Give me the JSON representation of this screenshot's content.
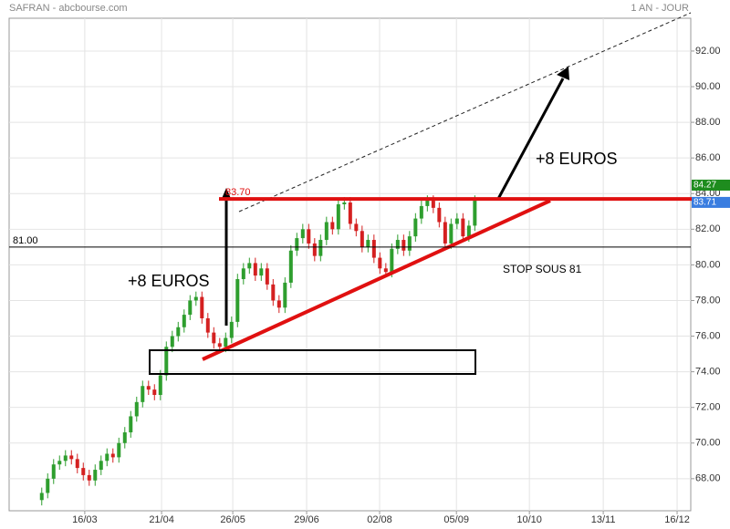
{
  "chart_data": {
    "type": "candlestick",
    "title": "SAFRAN - abcbourse.com",
    "subtitle": "1 AN - JOUR",
    "x": [
      11,
      13,
      15,
      17,
      19,
      21,
      23,
      25,
      27,
      29,
      31,
      33,
      35,
      37,
      39,
      41,
      43,
      45,
      47,
      49,
      51,
      53,
      55,
      57,
      59,
      61,
      63,
      65,
      67,
      69,
      71,
      73,
      75,
      77,
      79,
      81,
      83,
      85,
      87,
      89,
      91,
      93,
      95,
      97,
      99,
      101,
      103,
      105,
      107,
      109,
      111,
      113,
      115,
      117,
      119,
      121,
      123,
      125,
      127,
      129,
      131,
      133,
      135,
      137,
      139,
      141,
      143,
      145,
      147,
      149,
      151,
      153,
      155,
      157
    ],
    "open": [
      66.8,
      67.2,
      68.0,
      68.8,
      69.0,
      69.3,
      69.1,
      68.6,
      68.2,
      67.9,
      68.5,
      69.0,
      69.4,
      69.2,
      70.0,
      70.6,
      71.5,
      72.3,
      73.2,
      73.0,
      72.7,
      73.8,
      75.4,
      76.0,
      76.5,
      77.2,
      78.0,
      78.2,
      77.0,
      76.2,
      75.6,
      75.4,
      75.9,
      76.8,
      79.2,
      79.8,
      80.1,
      79.4,
      79.8,
      78.9,
      78.0,
      77.6,
      79.0,
      80.8,
      81.5,
      82.0,
      81.2,
      80.5,
      81.4,
      82.4,
      82.0,
      83.4,
      83.5,
      82.3,
      81.9,
      81.0,
      81.4,
      80.4,
      79.8,
      79.6,
      80.9,
      81.4,
      80.8,
      81.6,
      82.6,
      83.3,
      83.6,
      83.2,
      82.4,
      81.2,
      82.3,
      82.6,
      81.6,
      82.2
    ],
    "high": [
      67.5,
      68.3,
      69.1,
      69.3,
      69.6,
      69.6,
      69.4,
      68.9,
      68.5,
      68.8,
      69.3,
      69.7,
      69.7,
      70.3,
      70.9,
      71.8,
      72.6,
      73.5,
      73.5,
      73.3,
      74.1,
      75.7,
      76.3,
      76.8,
      77.5,
      78.3,
      78.5,
      78.5,
      77.3,
      76.5,
      75.9,
      76.2,
      77.1,
      79.5,
      80.1,
      80.4,
      80.4,
      80.1,
      80.1,
      79.2,
      78.3,
      79.3,
      81.1,
      81.8,
      82.3,
      82.3,
      81.5,
      81.7,
      82.7,
      82.7,
      83.7,
      83.8,
      83.8,
      82.6,
      82.2,
      81.7,
      81.7,
      80.7,
      80.1,
      81.2,
      81.7,
      81.7,
      81.9,
      82.9,
      83.6,
      83.9,
      83.9,
      83.5,
      82.7,
      82.6,
      82.9,
      82.9,
      82.5,
      83.9
    ],
    "low": [
      66.5,
      66.9,
      67.7,
      68.5,
      68.7,
      68.8,
      68.3,
      67.9,
      67.6,
      67.6,
      68.2,
      68.7,
      68.9,
      68.9,
      69.7,
      70.3,
      71.2,
      72.0,
      72.7,
      72.4,
      72.4,
      73.5,
      75.1,
      75.7,
      76.2,
      76.9,
      77.7,
      76.7,
      75.9,
      75.3,
      75.1,
      75.1,
      75.6,
      76.5,
      78.9,
      79.5,
      79.1,
      79.1,
      78.6,
      77.7,
      77.3,
      77.3,
      78.7,
      80.5,
      81.2,
      80.9,
      80.2,
      80.2,
      81.1,
      81.7,
      81.7,
      83.1,
      82.0,
      81.6,
      80.7,
      80.7,
      80.1,
      79.5,
      79.3,
      79.3,
      80.6,
      80.5,
      80.5,
      81.3,
      82.3,
      83.0,
      82.9,
      82.1,
      80.9,
      80.9,
      82.0,
      81.3,
      81.3,
      81.9
    ],
    "close": [
      67.2,
      68.0,
      68.8,
      69.0,
      69.3,
      69.1,
      68.6,
      68.2,
      67.9,
      68.5,
      69.0,
      69.4,
      69.2,
      70.0,
      70.6,
      71.5,
      72.3,
      73.2,
      73.0,
      72.7,
      73.8,
      75.4,
      76.0,
      76.5,
      77.2,
      78.0,
      78.2,
      77.0,
      76.2,
      75.6,
      75.4,
      75.9,
      76.8,
      79.2,
      79.8,
      80.1,
      79.4,
      79.8,
      78.9,
      78.0,
      77.6,
      79.0,
      80.8,
      81.5,
      82.0,
      81.2,
      80.5,
      81.4,
      82.4,
      82.0,
      83.4,
      83.5,
      82.3,
      81.9,
      81.0,
      81.4,
      80.4,
      79.8,
      79.6,
      80.9,
      81.4,
      80.8,
      81.6,
      82.6,
      83.3,
      83.6,
      83.2,
      82.4,
      81.2,
      82.3,
      82.6,
      81.6,
      82.2,
      83.6
    ],
    "up_color": "#2e9e2e",
    "down_color": "#d42020",
    "xlim": [
      0,
      229.8
    ],
    "xticks": [
      {
        "value": 25.5,
        "label": "16/03"
      },
      {
        "value": 51.4,
        "label": "21/04"
      },
      {
        "value": 75.4,
        "label": "26/05"
      },
      {
        "value": 100.3,
        "label": "29/06"
      },
      {
        "value": 124.9,
        "label": "02/08"
      },
      {
        "value": 150.8,
        "label": "05/09"
      },
      {
        "value": 175.4,
        "label": "10/10"
      },
      {
        "value": 200.3,
        "label": "13/11"
      },
      {
        "value": 225.2,
        "label": "16/12"
      }
    ],
    "ylim": [
      66.2,
      93.84
    ],
    "yticks": [
      {
        "value": 68,
        "label": "68.00"
      },
      {
        "value": 70,
        "label": "70.00"
      },
      {
        "value": 72,
        "label": "72.00"
      },
      {
        "value": 74,
        "label": "74.00"
      },
      {
        "value": 76,
        "label": "76.00"
      },
      {
        "value": 78,
        "label": "78.00"
      },
      {
        "value": 80,
        "label": "80.00"
      },
      {
        "value": 82,
        "label": "82.00"
      },
      {
        "value": 84,
        "label": "84.00"
      },
      {
        "value": 86,
        "label": "86.00"
      },
      {
        "value": 88,
        "label": "88.00"
      },
      {
        "value": 90,
        "label": "90.00"
      },
      {
        "value": 92,
        "label": "92.00"
      }
    ],
    "grid": true,
    "levels": [
      {
        "value": 83.7,
        "label": "83.70",
        "color": "#e01010"
      },
      {
        "value": 81,
        "label": "81.00",
        "color": "#000000"
      }
    ],
    "price_tags": [
      {
        "value": 84.27,
        "label": "84.27",
        "color": "#1e8c1e"
      },
      {
        "value": 83.71,
        "label": "83.71",
        "color": "#3a7de0"
      }
    ],
    "annotations": [
      "+8 EUROS",
      "+8 EUROS",
      "STOP SOUS 81"
    ]
  }
}
